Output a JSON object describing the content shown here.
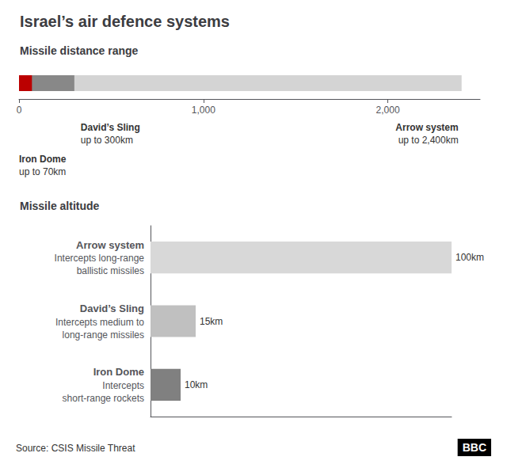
{
  "title": "Israel’s air defence systems",
  "annotations": [
    "Source: CSIS Missile Threat",
    "BBC"
  ],
  "chart_data": [
    {
      "type": "bar",
      "orientation": "horizontal",
      "stacked": false,
      "subtitle": "Missile distance range",
      "categories": [
        null
      ],
      "series": [
        {
          "name": "Arrow system",
          "color": "#d4d4d4",
          "values": [
            2400
          ],
          "annotation": "up to 2,400km"
        },
        {
          "name": "David’s Sling",
          "color": "#888888",
          "values": [
            300
          ],
          "annotation": "up to 300km"
        },
        {
          "name": "Iron Dome",
          "color": "#bb0000",
          "values": [
            70
          ],
          "annotation": "up to 70km"
        }
      ],
      "xlim": [
        0,
        2500
      ],
      "xticks": [
        0,
        {
          "value": 1000,
          "label": "1,000"
        },
        {
          "value": 2000,
          "label": "2,000"
        }
      ],
      "grid": false,
      "tick_labels": "x"
    },
    {
      "type": "bar",
      "orientation": "horizontal",
      "subtitle": "Missile altitude",
      "categories": [
        "Arrow system",
        "David’s Sling",
        "Iron Dome"
      ],
      "annotations": [
        "Intercepts long-range\nballistic missiles",
        "Intercepts medium to\nlong-range missiles",
        "Intercepts\nshort-range rockets"
      ],
      "values": [
        100,
        15,
        10
      ],
      "value_labels": [
        "100km",
        "15km",
        "10km"
      ],
      "data_labels": true,
      "colors": [
        "#d8d8d8",
        "#c0c0c0",
        "#808080"
      ],
      "xlim": [
        0,
        100
      ],
      "grid": false,
      "tick_labels": "y"
    }
  ]
}
